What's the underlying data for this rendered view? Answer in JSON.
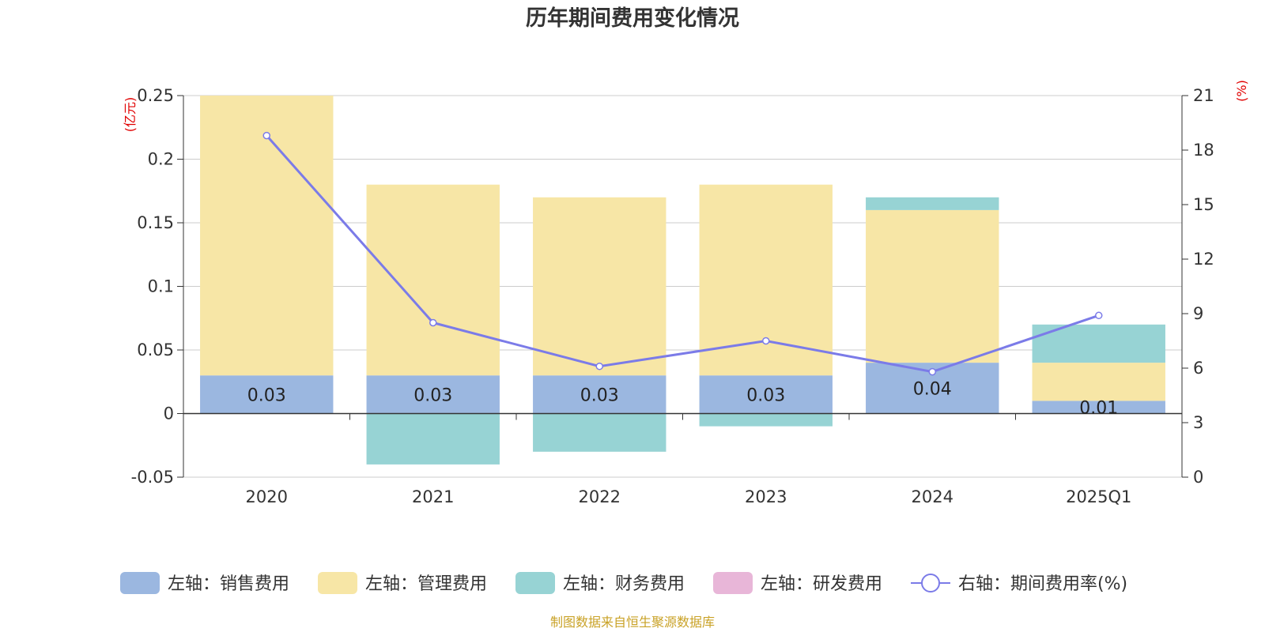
{
  "chart_data": {
    "type": "bar",
    "title": "历年期间费用变化情况",
    "categories": [
      "2020",
      "2021",
      "2022",
      "2023",
      "2024",
      "2025Q1"
    ],
    "left_axis": {
      "unit": "(亿元)",
      "ylim": [
        -0.05,
        0.25
      ],
      "ticks": [
        -0.05,
        0,
        0.05,
        0.1,
        0.15,
        0.2,
        0.25
      ],
      "tick_labels": [
        "-0.05",
        "0",
        "0.05",
        "0.1",
        "0.15",
        "0.2",
        "0.25"
      ]
    },
    "right_axis": {
      "unit": "(%)",
      "ylim": [
        0,
        21
      ],
      "ticks": [
        0,
        3,
        6,
        9,
        12,
        15,
        18,
        21
      ],
      "tick_labels": [
        "0",
        "3",
        "6",
        "9",
        "12",
        "15",
        "18",
        "21"
      ]
    },
    "stacked": true,
    "series": [
      {
        "name": "左轴：销售费用",
        "axis": "left",
        "type": "bar",
        "color": "#9bb7e0",
        "values": [
          0.03,
          0.03,
          0.03,
          0.03,
          0.04,
          0.01
        ],
        "labels": [
          "0.03",
          "0.03",
          "0.03",
          "0.03",
          "0.04",
          "0.01"
        ]
      },
      {
        "name": "左轴：管理费用",
        "axis": "left",
        "type": "bar",
        "color": "#f7e6a6",
        "values": [
          0.22,
          0.15,
          0.14,
          0.15,
          0.12,
          0.03
        ]
      },
      {
        "name": "左轴：财务费用",
        "axis": "left",
        "type": "bar",
        "color": "#97d3d4",
        "values": [
          0,
          -0.04,
          -0.03,
          -0.01,
          0.01,
          0.03
        ]
      },
      {
        "name": "左轴：研发费用",
        "axis": "left",
        "type": "bar",
        "color": "#e8b6d8",
        "values": [
          0,
          0,
          0,
          0,
          0,
          0
        ]
      },
      {
        "name": "右轴：期间费用率(%)",
        "axis": "right",
        "type": "line",
        "color": "#7b7be8",
        "values": [
          18.8,
          8.5,
          6.1,
          7.5,
          5.8,
          8.9
        ]
      }
    ],
    "grid": true,
    "legend_position": "bottom"
  },
  "source_note": "制图数据来自恒生聚源数据库"
}
